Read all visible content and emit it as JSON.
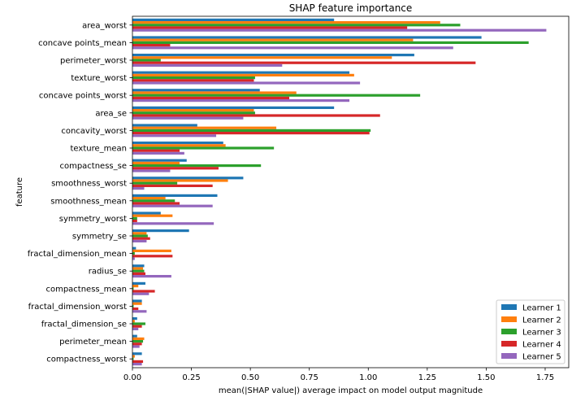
{
  "chart_data": {
    "type": "bar",
    "orientation": "horizontal",
    "title": "SHAP feature importance",
    "xlabel": "mean(|SHAP value|) average impact on model output magnitude",
    "ylabel": "feature",
    "xlim": [
      0,
      1.85
    ],
    "xticks": [
      0.0,
      0.25,
      0.5,
      0.75,
      1.0,
      1.25,
      1.5,
      1.75
    ],
    "xtick_labels": [
      "0.00",
      "0.25",
      "0.50",
      "0.75",
      "1.00",
      "1.25",
      "1.50",
      "1.75"
    ],
    "grid": false,
    "legend_position": "lower-right",
    "categories": [
      "area_worst",
      "concave points_mean",
      "perimeter_worst",
      "texture_worst",
      "concave points_worst",
      "area_se",
      "concavity_worst",
      "texture_mean",
      "compactness_se",
      "smoothness_worst",
      "smoothness_mean",
      "symmetry_worst",
      "symmetry_se",
      "fractal_dimension_mean",
      "radius_se",
      "compactness_mean",
      "fractal_dimension_worst",
      "fractal_dimension_se",
      "perimeter_mean",
      "compactness_worst"
    ],
    "series": [
      {
        "name": "Learner 1",
        "color": "#1f77b4",
        "values": [
          0.855,
          1.48,
          1.195,
          0.92,
          0.54,
          0.855,
          0.275,
          0.385,
          0.23,
          0.47,
          0.36,
          0.12,
          0.24,
          0.015,
          0.05,
          0.055,
          0.04,
          0.02,
          0.02,
          0.04
        ]
      },
      {
        "name": "Learner 2",
        "color": "#ff7f0e",
        "values": [
          1.305,
          1.19,
          1.1,
          0.94,
          0.695,
          0.515,
          0.61,
          0.395,
          0.2,
          0.405,
          0.14,
          0.17,
          0.06,
          0.165,
          0.045,
          0.025,
          0.04,
          0.01,
          0.05,
          0.01
        ]
      },
      {
        "name": "Learner 3",
        "color": "#2ca02c",
        "values": [
          1.39,
          1.68,
          0.12,
          0.52,
          1.22,
          0.52,
          1.01,
          0.6,
          0.545,
          0.19,
          0.18,
          0.02,
          0.065,
          0.01,
          0.05,
          0.005,
          0.005,
          0.055,
          0.045,
          0.005
        ]
      },
      {
        "name": "Learner 4",
        "color": "#d62728",
        "values": [
          1.165,
          0.16,
          1.455,
          0.515,
          0.665,
          1.05,
          1.005,
          0.2,
          0.365,
          0.34,
          0.2,
          0.02,
          0.075,
          0.17,
          0.055,
          0.095,
          0.025,
          0.04,
          0.04,
          0.045
        ]
      },
      {
        "name": "Learner 5",
        "color": "#9467bd",
        "values": [
          1.755,
          1.36,
          0.635,
          0.965,
          0.92,
          0.47,
          0.355,
          0.22,
          0.16,
          0.05,
          0.34,
          0.345,
          0.06,
          0.01,
          0.165,
          0.07,
          0.06,
          0.025,
          0.03,
          0.04
        ]
      }
    ]
  }
}
